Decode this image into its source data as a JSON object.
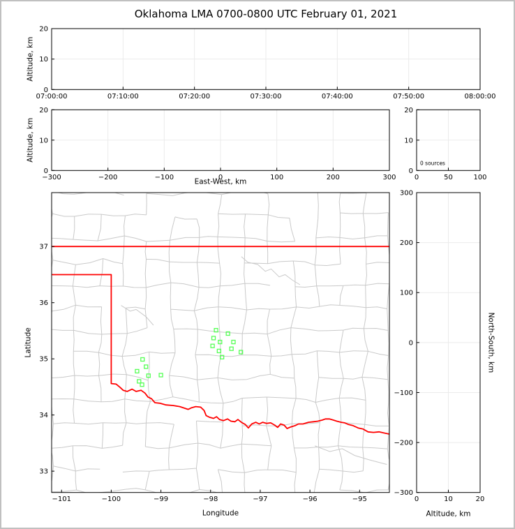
{
  "title": "Oklahoma LMA 0700-0800 UTC February 01, 2021",
  "colors": {
    "background": "#ffffff",
    "frame_border": "#c0c0c0",
    "axis": "#000000",
    "grid": "#ebebeb",
    "county_line": "#c9c9c9",
    "state_border": "#ff0000",
    "station_marker": "#55ff55",
    "text": "#000000"
  },
  "chart_data": [
    {
      "id": "time_altitude",
      "type": "scatter",
      "xlabel": "",
      "ylabel": "Altitude, km",
      "xlim": [
        0,
        6
      ],
      "xticks": {
        "values": [
          0,
          1,
          2,
          3,
          4,
          5,
          6
        ],
        "labels": [
          "07:00:00",
          "07:10:00",
          "07:20:00",
          "07:30:00",
          "07:40:00",
          "07:50:00",
          "08:00:00"
        ]
      },
      "ylim": [
        0,
        20
      ],
      "yticks": {
        "values": [
          0,
          10,
          20
        ],
        "labels": [
          "0",
          "10",
          "20"
        ]
      },
      "grid": true,
      "points": []
    },
    {
      "id": "eastwest_altitude",
      "type": "scatter",
      "xlabel": "East-West, km",
      "ylabel": "Altitude, km",
      "xlim": [
        -300,
        300
      ],
      "xticks": {
        "values": [
          -300,
          -200,
          -100,
          0,
          100,
          200,
          300
        ],
        "labels": [
          "−300",
          "−200",
          "−100",
          "0",
          "100",
          "200",
          "300"
        ]
      },
      "ylim": [
        0,
        20
      ],
      "yticks": {
        "values": [
          0,
          10,
          20
        ],
        "labels": [
          "0",
          "10",
          "20"
        ]
      },
      "grid": true,
      "points": []
    },
    {
      "id": "altitude_histogram",
      "type": "line",
      "xlabel": "",
      "ylabel": "",
      "xlim": [
        0,
        100
      ],
      "xticks": {
        "values": [
          0,
          50,
          100
        ],
        "labels": [
          "0",
          "50",
          "100"
        ]
      },
      "ylim": [
        0,
        20
      ],
      "yticks": {
        "values": [
          0,
          10,
          20
        ],
        "labels": [
          "0",
          "10",
          "20"
        ]
      },
      "annotation": "0 sources",
      "grid": true,
      "points": []
    },
    {
      "id": "plan_view_map",
      "type": "scatter",
      "xlabel": "Longitude",
      "ylabel": "Latitude",
      "xlim": [
        -101.2,
        -94.4
      ],
      "xticks": {
        "values": [
          -101,
          -100,
          -99,
          -98,
          -97,
          -96,
          -95
        ],
        "labels": [
          "−101",
          "−100",
          "−99",
          "−98",
          "−97",
          "−96",
          "−95"
        ]
      },
      "ylim": [
        32.62,
        37.96
      ],
      "yticks": {
        "values": [
          33,
          34,
          35,
          36,
          37
        ],
        "labels": [
          "33",
          "34",
          "35",
          "36",
          "37"
        ]
      },
      "grid": false,
      "stations": [
        [
          -99.37,
          34.99
        ],
        [
          -99.3,
          34.86
        ],
        [
          -99.48,
          34.78
        ],
        [
          -99.25,
          34.7
        ],
        [
          -99.0,
          34.71
        ],
        [
          -99.44,
          34.6
        ],
        [
          -99.38,
          34.54
        ],
        [
          -97.89,
          35.51
        ],
        [
          -97.65,
          35.45
        ],
        [
          -97.94,
          35.37
        ],
        [
          -97.81,
          35.3
        ],
        [
          -97.96,
          35.23
        ],
        [
          -97.54,
          35.3
        ],
        [
          -97.58,
          35.18
        ],
        [
          -97.83,
          35.14
        ],
        [
          -97.39,
          35.12
        ],
        [
          -97.77,
          35.03
        ]
      ],
      "map": {
        "north_border": [
          [
            -101.2,
            37.0
          ],
          [
            -94.4,
            37.0
          ]
        ],
        "west_south_border": [
          [
            -101.2,
            36.5
          ],
          [
            -100.0,
            36.5
          ],
          [
            -100.0,
            34.56
          ],
          [
            -99.9,
            34.55
          ],
          [
            -99.82,
            34.49
          ],
          [
            -99.76,
            34.44
          ],
          [
            -99.68,
            34.42
          ],
          [
            -99.58,
            34.46
          ],
          [
            -99.5,
            34.42
          ],
          [
            -99.4,
            34.44
          ],
          [
            -99.32,
            34.39
          ],
          [
            -99.26,
            34.32
          ],
          [
            -99.19,
            34.29
          ],
          [
            -99.12,
            34.22
          ],
          [
            -99.02,
            34.21
          ],
          [
            -98.9,
            34.18
          ],
          [
            -98.76,
            34.17
          ],
          [
            -98.62,
            34.15
          ],
          [
            -98.52,
            34.12
          ],
          [
            -98.45,
            34.1
          ],
          [
            -98.38,
            34.13
          ],
          [
            -98.3,
            34.15
          ],
          [
            -98.2,
            34.14
          ],
          [
            -98.13,
            34.08
          ],
          [
            -98.09,
            33.99
          ],
          [
            -98.02,
            33.96
          ],
          [
            -97.94,
            33.94
          ],
          [
            -97.88,
            33.97
          ],
          [
            -97.82,
            33.92
          ],
          [
            -97.74,
            33.9
          ],
          [
            -97.66,
            33.93
          ],
          [
            -97.59,
            33.89
          ],
          [
            -97.51,
            33.88
          ],
          [
            -97.45,
            33.92
          ],
          [
            -97.38,
            33.87
          ],
          [
            -97.3,
            33.83
          ],
          [
            -97.24,
            33.77
          ],
          [
            -97.17,
            33.84
          ],
          [
            -97.09,
            33.87
          ],
          [
            -97.02,
            33.84
          ],
          [
            -96.95,
            33.87
          ],
          [
            -96.87,
            33.85
          ],
          [
            -96.79,
            33.86
          ],
          [
            -96.71,
            33.82
          ],
          [
            -96.65,
            33.78
          ],
          [
            -96.59,
            33.84
          ],
          [
            -96.52,
            33.82
          ],
          [
            -96.46,
            33.76
          ],
          [
            -96.38,
            33.79
          ],
          [
            -96.3,
            33.81
          ],
          [
            -96.23,
            33.84
          ],
          [
            -96.14,
            33.84
          ],
          [
            -96.03,
            33.87
          ],
          [
            -95.93,
            33.88
          ],
          [
            -95.84,
            33.89
          ],
          [
            -95.75,
            33.91
          ],
          [
            -95.69,
            33.93
          ],
          [
            -95.61,
            33.93
          ],
          [
            -95.53,
            33.91
          ],
          [
            -95.46,
            33.89
          ],
          [
            -95.37,
            33.87
          ],
          [
            -95.3,
            33.86
          ],
          [
            -95.22,
            33.83
          ],
          [
            -95.13,
            33.81
          ],
          [
            -95.03,
            33.77
          ],
          [
            -94.93,
            33.75
          ],
          [
            -94.83,
            33.7
          ],
          [
            -94.72,
            33.69
          ],
          [
            -94.61,
            33.7
          ],
          [
            -94.51,
            33.68
          ],
          [
            -94.4,
            33.66
          ]
        ],
        "rivers": [
          [
            [
              -97.38,
              36.82
            ],
            [
              -97.25,
              36.72
            ],
            [
              -97.05,
              36.68
            ],
            [
              -96.9,
              36.56
            ],
            [
              -96.78,
              36.6
            ],
            [
              -96.62,
              36.46
            ],
            [
              -96.5,
              36.5
            ],
            [
              -96.35,
              36.4
            ],
            [
              -96.2,
              36.32
            ]
          ],
          [
            [
              -99.8,
              35.95
            ],
            [
              -99.62,
              35.85
            ],
            [
              -99.5,
              35.88
            ],
            [
              -99.3,
              35.75
            ],
            [
              -99.15,
              35.6
            ]
          ],
          [
            [
              -95.9,
              33.45
            ],
            [
              -95.6,
              33.35
            ],
            [
              -95.35,
              33.4
            ],
            [
              -95.1,
              33.28
            ],
            [
              -94.8,
              33.2
            ],
            [
              -94.45,
              33.12
            ]
          ]
        ]
      }
    },
    {
      "id": "northsouth_altitude",
      "type": "scatter",
      "xlabel": "Altitude, km",
      "ylabel": "North-South, km",
      "xlim": [
        0,
        20
      ],
      "xticks": {
        "values": [
          0,
          10,
          20
        ],
        "labels": [
          "0",
          "10",
          "20"
        ]
      },
      "ylim": [
        -300,
        300
      ],
      "yticks": {
        "values": [
          300,
          200,
          100,
          0,
          -100,
          -200,
          -300
        ],
        "labels": [
          "300",
          "200",
          "100",
          "0",
          "−100",
          "−200",
          "−300"
        ]
      },
      "grid": true,
      "points": []
    }
  ]
}
